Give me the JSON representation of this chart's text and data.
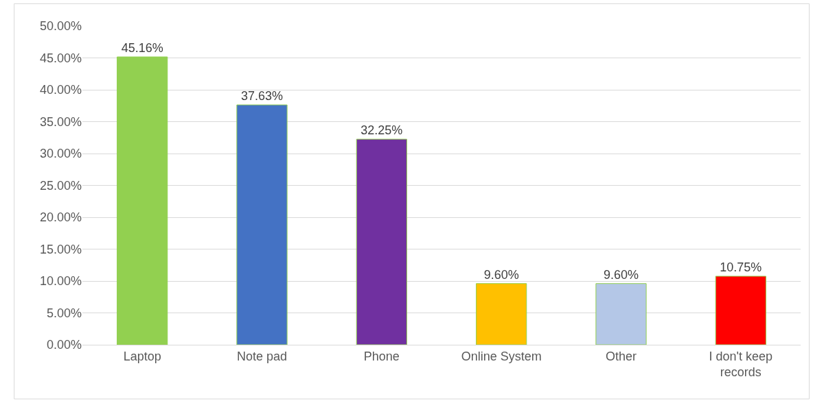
{
  "chart_data": {
    "type": "bar",
    "categories": [
      "Laptop",
      "Note pad",
      "Phone",
      "Online System",
      "Other",
      "I don't keep records"
    ],
    "values": [
      45.16,
      37.63,
      32.25,
      9.6,
      9.6,
      10.75
    ],
    "colors": [
      "#92d050",
      "#4472c4",
      "#7030a0",
      "#ffc000",
      "#b4c7e7",
      "#ff0000"
    ],
    "value_labels": [
      "45.16%",
      "37.63%",
      "32.25%",
      "9.60%",
      "9.60%",
      "10.75%"
    ],
    "ylim": [
      0,
      50
    ],
    "yticks": [
      {
        "value": 0,
        "label": "0.00%"
      },
      {
        "value": 5,
        "label": "5.00%"
      },
      {
        "value": 10,
        "label": "10.00%"
      },
      {
        "value": 15,
        "label": "15.00%"
      },
      {
        "value": 20,
        "label": "20.00%"
      },
      {
        "value": 25,
        "label": "25.00%"
      },
      {
        "value": 30,
        "label": "30.00%"
      },
      {
        "value": 35,
        "label": "35.00%"
      },
      {
        "value": 40,
        "label": "40.00%"
      },
      {
        "value": 45,
        "label": "45.00%"
      },
      {
        "value": 50,
        "label": "50.00%"
      }
    ],
    "grid": "y"
  }
}
